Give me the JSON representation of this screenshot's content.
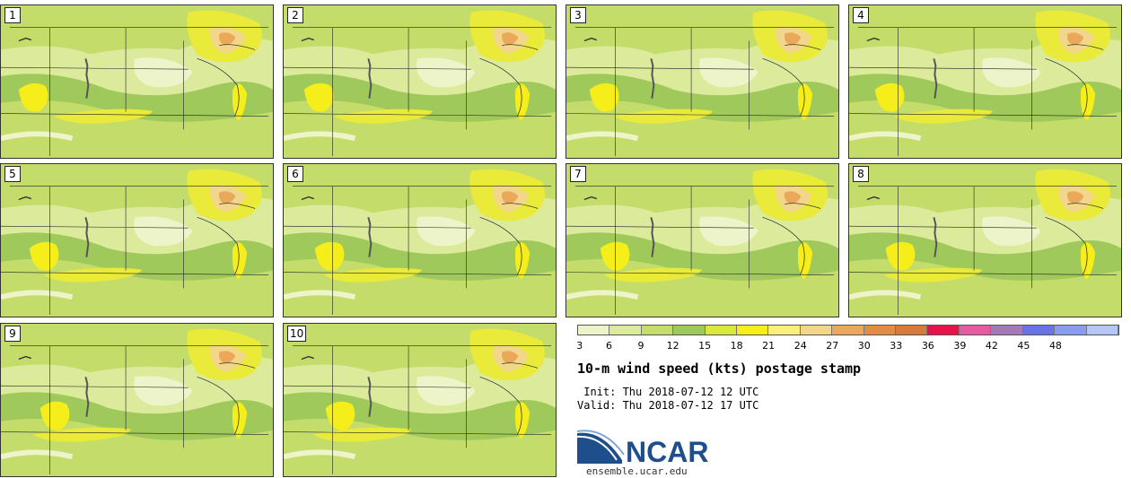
{
  "panels": [
    {
      "label": "1"
    },
    {
      "label": "2"
    },
    {
      "label": "3"
    },
    {
      "label": "4"
    },
    {
      "label": "5"
    },
    {
      "label": "6"
    },
    {
      "label": "7"
    },
    {
      "label": "8"
    },
    {
      "label": "9"
    },
    {
      "label": "10"
    }
  ],
  "colorbar": {
    "colors": [
      "#eef4c9",
      "#dcea9c",
      "#c4dd6a",
      "#9fc95a",
      "#d9e83a",
      "#f5ee1a",
      "#f8f07a",
      "#f2d689",
      "#e9a85a",
      "#e28c44",
      "#d97a3a",
      "#e8124a",
      "#e55aa0",
      "#a57ab8",
      "#6a72e8",
      "#8a9cf0",
      "#b6c6f6"
    ],
    "ticks": [
      "3",
      "6",
      "9",
      "12",
      "15",
      "18",
      "21",
      "24",
      "27",
      "30",
      "33",
      "36",
      "39",
      "42",
      "45",
      "48"
    ]
  },
  "title": "10-m wind speed (kts) postage stamp",
  "init_text": " Init: Thu 2018-07-12 12 UTC",
  "valid_text": "Valid: Thu 2018-07-12 17 UTC",
  "logo": {
    "text": "NCAR",
    "color": "#1f4e8c"
  },
  "site": "ensemble.ucar.edu"
}
